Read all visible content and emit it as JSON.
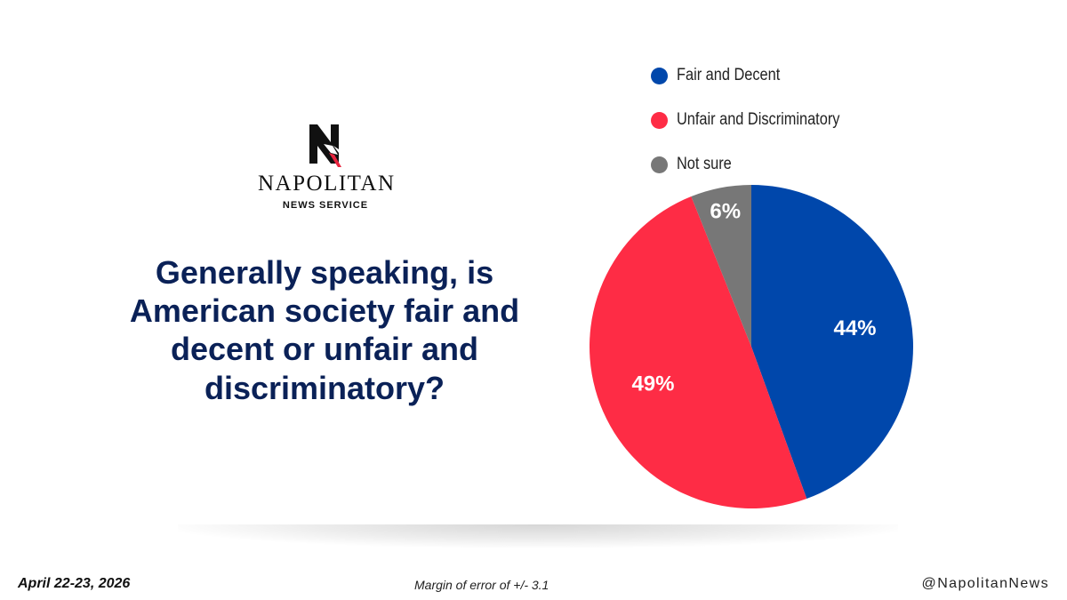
{
  "brand": {
    "name": "NAPOLITAN",
    "subtitle": "NEWS SERVICE",
    "colors": {
      "navy": "#0a2157",
      "red": "#e8253f"
    }
  },
  "question": "Generally speaking, is American society fair and decent or unfair and discriminatory?",
  "chart_data": {
    "type": "pie",
    "title": "",
    "legend_position": "top-right",
    "slices": [
      {
        "label": "Fair and Decent",
        "value": 44,
        "display": "44%",
        "color": "#0047ab"
      },
      {
        "label": "Unfair and Discriminatory",
        "value": 49,
        "display": "49%",
        "color": "#fe2c45"
      },
      {
        "label": "Not sure",
        "value": 6,
        "display": "6%",
        "color": "#777777"
      }
    ]
  },
  "footer": {
    "date": "April 22-23, 2026",
    "margin_of_error": "Margin of error of +/- 3.1",
    "handle": "@NapolitanNews"
  }
}
